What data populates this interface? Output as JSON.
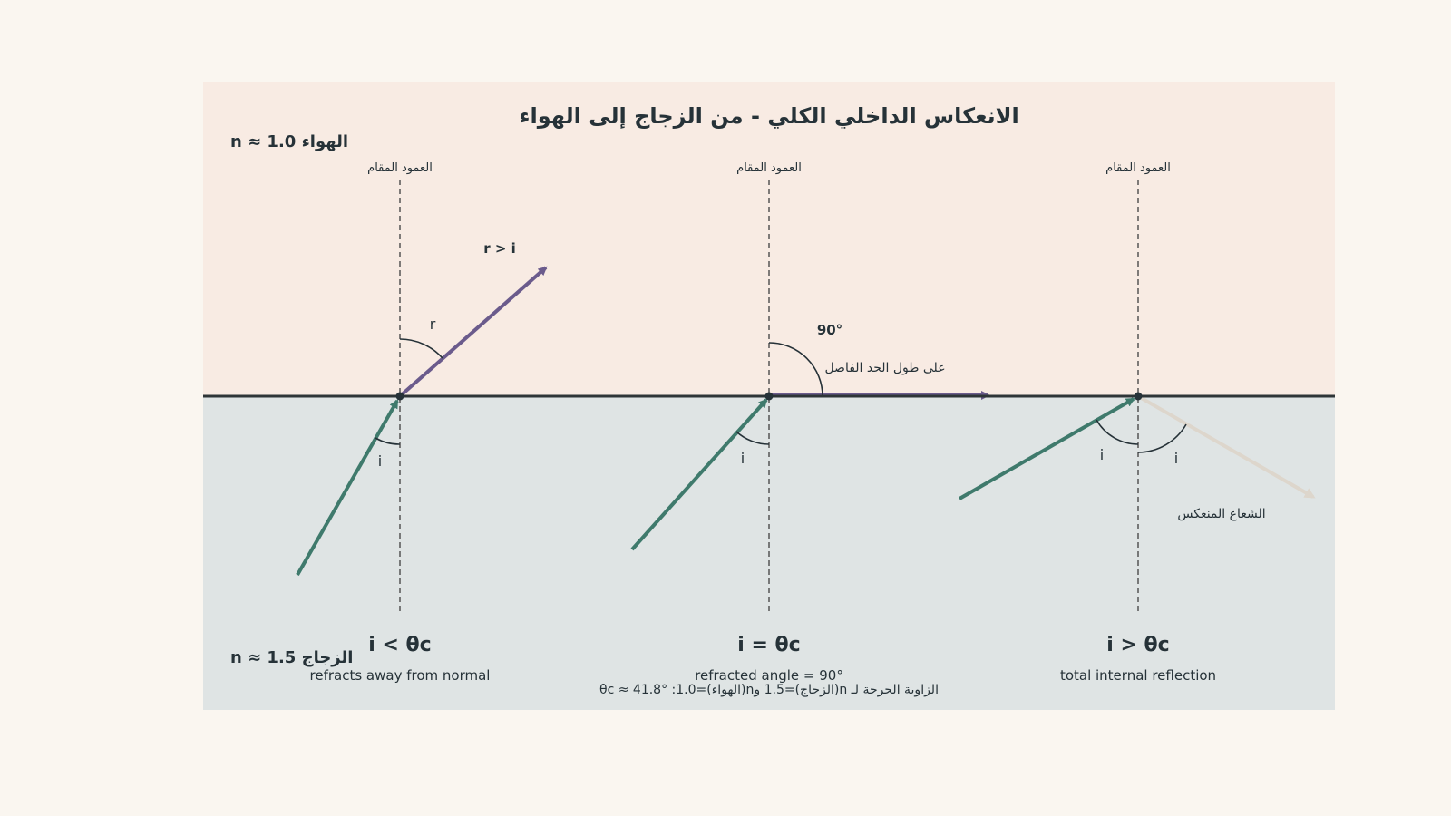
{
  "title": "الانعكاس الداخلي الكلي - من الزجاج إلى الهواء",
  "media": {
    "air_label": "n ≈ 1.0  الهواء",
    "glass_label": "n ≈ 1.5  الزجاج"
  },
  "normal_label": "العمود المقام",
  "panels": [
    {
      "condition": "i < θc",
      "caption": "refracts away from normal",
      "incident_angle_label": "i",
      "refracted_angle_label": "r",
      "relation_label": "r > i"
    },
    {
      "condition": "i = θc",
      "caption": "refracted angle = 90°",
      "incident_angle_label": "i",
      "angle_90_label": "90°",
      "along_boundary_label": "على طول الحد الفاصل"
    },
    {
      "condition": "i > θc",
      "caption": "total internal reflection",
      "incident_angle_label": "i",
      "reflected_angle_label": "i",
      "reflected_ray_label": "الشعاع المنعكس"
    }
  ],
  "critical_angle_note": "الزاوية الحرجة لـ n(الزجاج)=1.5 وn(الهواء)=1.0:  θc ≈ 41.8°",
  "colors": {
    "air": "#f8ebe3",
    "glass": "#dfe4e4",
    "incident_ray": "#3f7a6c",
    "refracted_ray": "#6b5b8c",
    "reflected_ray": "#ddd6cc",
    "boundary": "#2e3537",
    "text": "#263238"
  }
}
